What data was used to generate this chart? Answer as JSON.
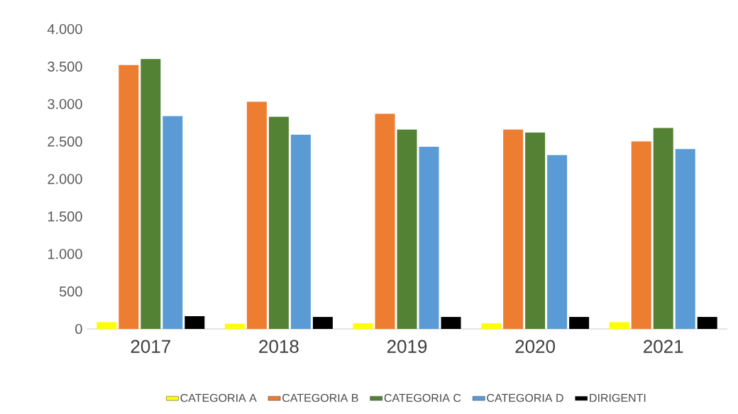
{
  "chart_data": {
    "type": "bar",
    "categories": [
      "2017",
      "2018",
      "2019",
      "2020",
      "2021"
    ],
    "ylim": [
      0,
      4000
    ],
    "yticks": [
      {
        "value": 0,
        "label": "0"
      },
      {
        "value": 500,
        "label": "500"
      },
      {
        "value": 1000,
        "label": "1.000"
      },
      {
        "value": 1500,
        "label": "1.500"
      },
      {
        "value": 2000,
        "label": "2.000"
      },
      {
        "value": 2500,
        "label": "2.500"
      },
      {
        "value": 3000,
        "label": "3.000"
      },
      {
        "value": 3500,
        "label": "3.500"
      },
      {
        "value": 4000,
        "label": "4.000"
      }
    ],
    "legend": "bottom",
    "series": [
      {
        "name": "CATEGORIA A",
        "color": "#ffff00",
        "values": [
          90,
          70,
          75,
          75,
          90
        ]
      },
      {
        "name": "CATEGORIA B",
        "color": "#ed7d31",
        "values": [
          3520,
          3030,
          2870,
          2660,
          2500
        ]
      },
      {
        "name": "CATEGORIA C",
        "color": "#548235",
        "values": [
          3600,
          2830,
          2660,
          2620,
          2680
        ]
      },
      {
        "name": "CATEGORIA D",
        "color": "#5b9bd5",
        "values": [
          2840,
          2590,
          2430,
          2320,
          2400
        ]
      },
      {
        "name": "DIRIGENTI",
        "color": "#000000",
        "values": [
          170,
          160,
          160,
          160,
          160
        ]
      }
    ]
  }
}
